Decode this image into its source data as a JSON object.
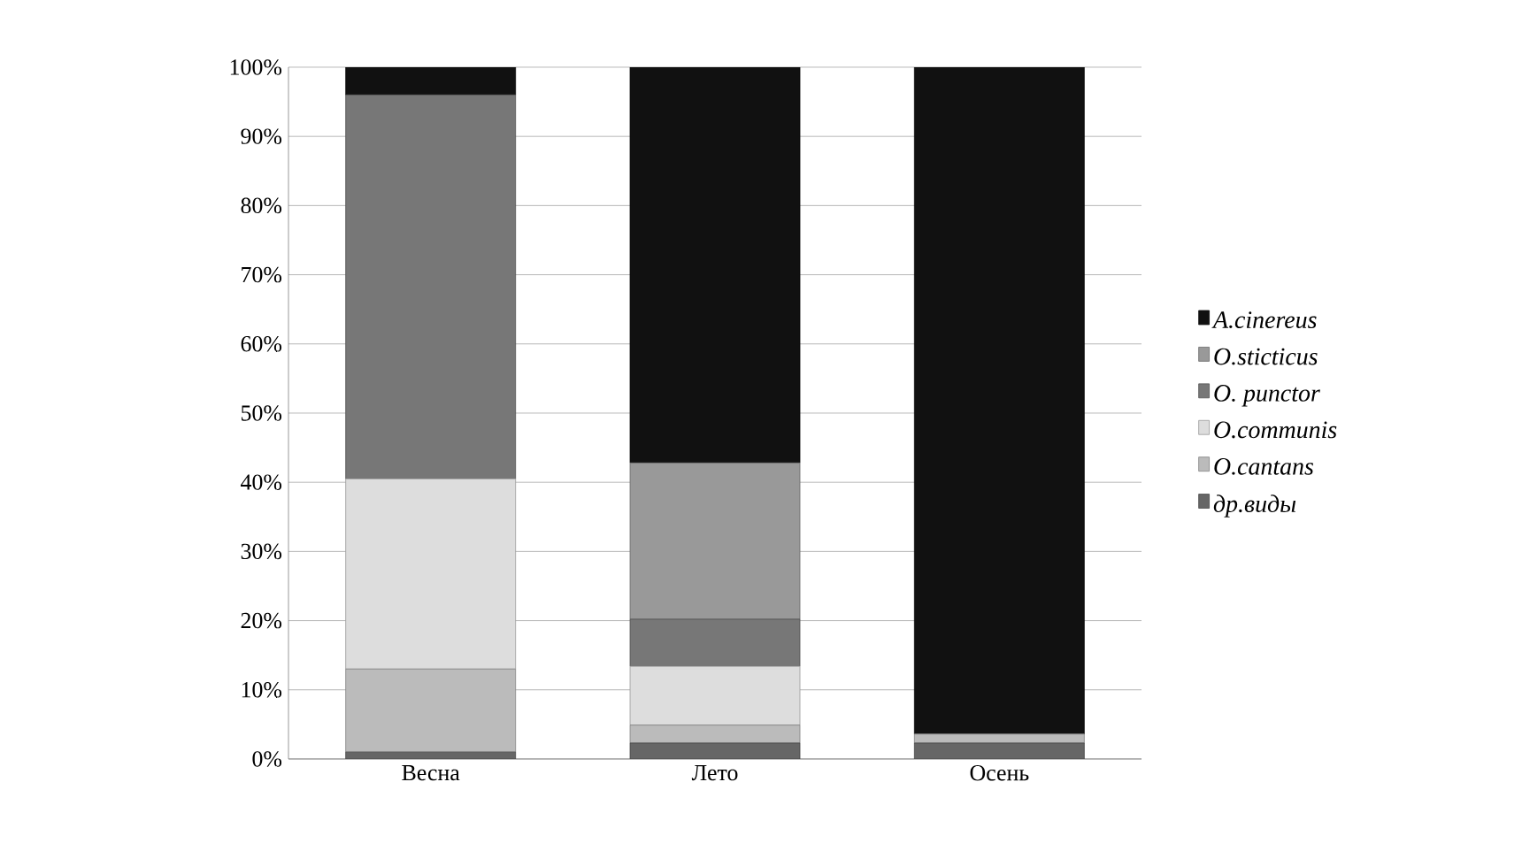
{
  "chart_data": {
    "type": "bar",
    "stacked": true,
    "categories": [
      "Весна",
      "Лето",
      "Осень"
    ],
    "series": [
      {
        "name": "др.виды",
        "color": "#666666",
        "values": [
          1,
          2.3,
          2.3
        ]
      },
      {
        "name": "O.cantans",
        "color": "#bbbbbb",
        "values": [
          12,
          2.6,
          1.3
        ]
      },
      {
        "name": "O.communis",
        "color": "#dddddd",
        "values": [
          27.5,
          8.5,
          0
        ]
      },
      {
        "name": "O. punctor",
        "color": "#777777",
        "values": [
          55.5,
          6.8,
          0
        ]
      },
      {
        "name": "O.sticticus",
        "color": "#999999",
        "values": [
          0,
          22.6,
          0
        ]
      },
      {
        "name": "A.cinereus",
        "color": "#111111",
        "values": [
          4,
          57.2,
          96.4
        ]
      }
    ],
    "ylim": [
      0,
      100
    ],
    "yticks": [
      {
        "value": 0,
        "label": "0%"
      },
      {
        "value": 10,
        "label": "10%"
      },
      {
        "value": 20,
        "label": "20%"
      },
      {
        "value": 30,
        "label": "30%"
      },
      {
        "value": 40,
        "label": "40%"
      },
      {
        "value": 50,
        "label": "50%"
      },
      {
        "value": 60,
        "label": "60%"
      },
      {
        "value": 70,
        "label": "70%"
      },
      {
        "value": 80,
        "label": "80%"
      },
      {
        "value": 90,
        "label": "90%"
      },
      {
        "value": 100,
        "label": "100%"
      }
    ],
    "grid": "y",
    "legend": "right"
  }
}
